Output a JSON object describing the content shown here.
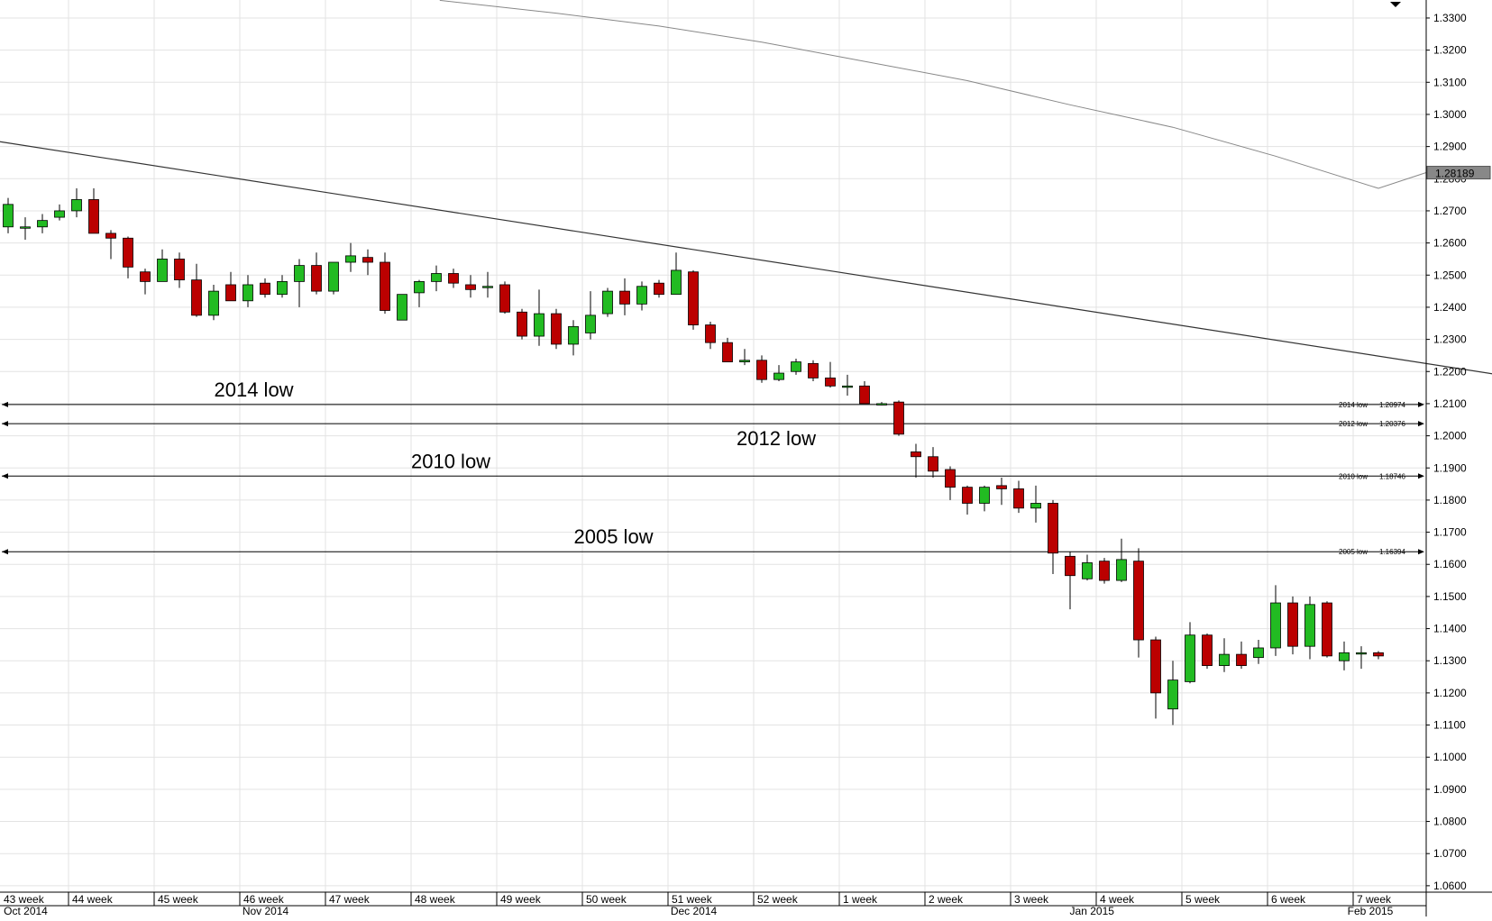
{
  "chart_data": {
    "type": "candlestick",
    "title": "",
    "xlabel": "",
    "ylabel": "",
    "ylim": [
      1.058,
      1.3356
    ],
    "y_ticks": [
      "1.0600",
      "1.0700",
      "1.0800",
      "1.0900",
      "1.1000",
      "1.1100",
      "1.1200",
      "1.1300",
      "1.1400",
      "1.1500",
      "1.1600",
      "1.1700",
      "1.1800",
      "1.1900",
      "1.2000",
      "1.2100",
      "1.2200",
      "1.2300",
      "1.2400",
      "1.2500",
      "1.2600",
      "1.2700",
      "1.2800",
      "1.2900",
      "1.3000",
      "1.3100",
      "1.3200",
      "1.3300"
    ],
    "week_labels": [
      "43 week",
      "44 week",
      "45 week",
      "46 week",
      "47 week",
      "48 week",
      "49 week",
      "50 week",
      "51 week",
      "52 week",
      "1 week",
      "2 week",
      "3 week",
      "4 week",
      "5 week",
      "6 week",
      "7 week"
    ],
    "month_labels": [
      {
        "label": "Oct 2014",
        "at_week": 0.5
      },
      {
        "label": "Nov 2014",
        "at_week": 3.3
      },
      {
        "label": "Dec 2014",
        "at_week": 8.3
      },
      {
        "label": "Jan 2015",
        "at_week": 12.95
      },
      {
        "label": "Feb 2015",
        "at_week": 16.2
      }
    ],
    "candles": [
      {
        "o": 1.265,
        "h": 1.274,
        "l": 1.263,
        "c": 1.272
      },
      {
        "o": 1.265,
        "h": 1.268,
        "l": 1.261,
        "c": 1.265
      },
      {
        "o": 1.265,
        "h": 1.269,
        "l": 1.263,
        "c": 1.267
      },
      {
        "o": 1.268,
        "h": 1.272,
        "l": 1.267,
        "c": 1.27
      },
      {
        "o": 1.27,
        "h": 1.277,
        "l": 1.268,
        "c": 1.2735
      },
      {
        "o": 1.2735,
        "h": 1.277,
        "l": 1.263,
        "c": 1.263
      },
      {
        "o": 1.263,
        "h": 1.264,
        "l": 1.255,
        "c": 1.2615
      },
      {
        "o": 1.2615,
        "h": 1.262,
        "l": 1.249,
        "c": 1.2525
      },
      {
        "o": 1.251,
        "h": 1.252,
        "l": 1.244,
        "c": 1.248
      },
      {
        "o": 1.248,
        "h": 1.258,
        "l": 1.248,
        "c": 1.255
      },
      {
        "o": 1.255,
        "h": 1.257,
        "l": 1.246,
        "c": 1.2485
      },
      {
        "o": 1.2485,
        "h": 1.2535,
        "l": 1.237,
        "c": 1.2375
      },
      {
        "o": 1.2375,
        "h": 1.247,
        "l": 1.236,
        "c": 1.245
      },
      {
        "o": 1.247,
        "h": 1.251,
        "l": 1.242,
        "c": 1.242
      },
      {
        "o": 1.242,
        "h": 1.25,
        "l": 1.24,
        "c": 1.247
      },
      {
        "o": 1.2475,
        "h": 1.249,
        "l": 1.243,
        "c": 1.244
      },
      {
        "o": 1.244,
        "h": 1.25,
        "l": 1.243,
        "c": 1.248
      },
      {
        "o": 1.248,
        "h": 1.255,
        "l": 1.24,
        "c": 1.253
      },
      {
        "o": 1.253,
        "h": 1.257,
        "l": 1.244,
        "c": 1.245
      },
      {
        "o": 1.245,
        "h": 1.254,
        "l": 1.244,
        "c": 1.254
      },
      {
        "o": 1.254,
        "h": 1.26,
        "l": 1.251,
        "c": 1.256
      },
      {
        "o": 1.2555,
        "h": 1.258,
        "l": 1.25,
        "c": 1.254
      },
      {
        "o": 1.254,
        "h": 1.257,
        "l": 1.238,
        "c": 1.239
      },
      {
        "o": 1.236,
        "h": 1.244,
        "l": 1.236,
        "c": 1.244
      },
      {
        "o": 1.2445,
        "h": 1.2485,
        "l": 1.24,
        "c": 1.248
      },
      {
        "o": 1.248,
        "h": 1.253,
        "l": 1.245,
        "c": 1.2505
      },
      {
        "o": 1.2505,
        "h": 1.252,
        "l": 1.246,
        "c": 1.2475
      },
      {
        "o": 1.247,
        "h": 1.25,
        "l": 1.243,
        "c": 1.2455
      },
      {
        "o": 1.2465,
        "h": 1.251,
        "l": 1.243,
        "c": 1.2465
      },
      {
        "o": 1.247,
        "h": 1.248,
        "l": 1.238,
        "c": 1.2385
      },
      {
        "o": 1.2385,
        "h": 1.2395,
        "l": 1.23,
        "c": 1.231
      },
      {
        "o": 1.231,
        "h": 1.2455,
        "l": 1.228,
        "c": 1.238
      },
      {
        "o": 1.238,
        "h": 1.2395,
        "l": 1.227,
        "c": 1.2285
      },
      {
        "o": 1.2285,
        "h": 1.236,
        "l": 1.225,
        "c": 1.234
      },
      {
        "o": 1.232,
        "h": 1.245,
        "l": 1.23,
        "c": 1.2375
      },
      {
        "o": 1.238,
        "h": 1.246,
        "l": 1.237,
        "c": 1.245
      },
      {
        "o": 1.245,
        "h": 1.249,
        "l": 1.2375,
        "c": 1.241
      },
      {
        "o": 1.241,
        "h": 1.248,
        "l": 1.239,
        "c": 1.2465
      },
      {
        "o": 1.2475,
        "h": 1.2485,
        "l": 1.243,
        "c": 1.244
      },
      {
        "o": 1.244,
        "h": 1.257,
        "l": 1.244,
        "c": 1.2515
      },
      {
        "o": 1.251,
        "h": 1.2515,
        "l": 1.233,
        "c": 1.2345
      },
      {
        "o": 1.2345,
        "h": 1.2355,
        "l": 1.227,
        "c": 1.229
      },
      {
        "o": 1.229,
        "h": 1.2305,
        "l": 1.223,
        "c": 1.223
      },
      {
        "o": 1.223,
        "h": 1.227,
        "l": 1.222,
        "c": 1.2235
      },
      {
        "o": 1.2235,
        "h": 1.225,
        "l": 1.2165,
        "c": 1.2175
      },
      {
        "o": 1.2175,
        "h": 1.222,
        "l": 1.217,
        "c": 1.2195
      },
      {
        "o": 1.22,
        "h": 1.224,
        "l": 1.219,
        "c": 1.223
      },
      {
        "o": 1.2225,
        "h": 1.2235,
        "l": 1.217,
        "c": 1.218
      },
      {
        "o": 1.218,
        "h": 1.223,
        "l": 1.215,
        "c": 1.2155
      },
      {
        "o": 1.2155,
        "h": 1.219,
        "l": 1.2125,
        "c": 1.2155
      },
      {
        "o": 1.2155,
        "h": 1.217,
        "l": 1.21,
        "c": 1.21
      },
      {
        "o": 1.21,
        "h": 1.2105,
        "l": 1.2095,
        "c": 1.21
      },
      {
        "o": 1.2105,
        "h": 1.211,
        "l": 1.2,
        "c": 1.2005
      },
      {
        "o": 1.195,
        "h": 1.1975,
        "l": 1.187,
        "c": 1.1935
      },
      {
        "o": 1.1935,
        "h": 1.1965,
        "l": 1.187,
        "c": 1.189
      },
      {
        "o": 1.1895,
        "h": 1.1905,
        "l": 1.18,
        "c": 1.184
      },
      {
        "o": 1.184,
        "h": 1.1845,
        "l": 1.1755,
        "c": 1.179
      },
      {
        "o": 1.179,
        "h": 1.1845,
        "l": 1.1765,
        "c": 1.184
      },
      {
        "o": 1.1845,
        "h": 1.187,
        "l": 1.1785,
        "c": 1.1835
      },
      {
        "o": 1.1835,
        "h": 1.186,
        "l": 1.176,
        "c": 1.1775
      },
      {
        "o": 1.1775,
        "h": 1.1845,
        "l": 1.173,
        "c": 1.179
      },
      {
        "o": 1.179,
        "h": 1.18,
        "l": 1.157,
        "c": 1.1635
      },
      {
        "o": 1.1625,
        "h": 1.164,
        "l": 1.146,
        "c": 1.1565
      },
      {
        "o": 1.1555,
        "h": 1.163,
        "l": 1.155,
        "c": 1.1605
      },
      {
        "o": 1.161,
        "h": 1.162,
        "l": 1.154,
        "c": 1.155
      },
      {
        "o": 1.155,
        "h": 1.168,
        "l": 1.1545,
        "c": 1.1615
      },
      {
        "o": 1.161,
        "h": 1.165,
        "l": 1.131,
        "c": 1.1365
      },
      {
        "o": 1.1365,
        "h": 1.1375,
        "l": 1.112,
        "c": 1.12
      },
      {
        "o": 1.115,
        "h": 1.13,
        "l": 1.11,
        "c": 1.124
      },
      {
        "o": 1.1235,
        "h": 1.142,
        "l": 1.123,
        "c": 1.138
      },
      {
        "o": 1.138,
        "h": 1.1385,
        "l": 1.1275,
        "c": 1.1285
      },
      {
        "o": 1.1285,
        "h": 1.137,
        "l": 1.1265,
        "c": 1.132
      },
      {
        "o": 1.132,
        "h": 1.136,
        "l": 1.1275,
        "c": 1.1285
      },
      {
        "o": 1.131,
        "h": 1.1365,
        "l": 1.129,
        "c": 1.134
      },
      {
        "o": 1.134,
        "h": 1.1535,
        "l": 1.1315,
        "c": 1.148
      },
      {
        "o": 1.148,
        "h": 1.15,
        "l": 1.132,
        "c": 1.1345
      },
      {
        "o": 1.1345,
        "h": 1.15,
        "l": 1.1305,
        "c": 1.1475
      },
      {
        "o": 1.148,
        "h": 1.1485,
        "l": 1.131,
        "c": 1.1315
      },
      {
        "o": 1.13,
        "h": 1.136,
        "l": 1.127,
        "c": 1.1325
      },
      {
        "o": 1.1325,
        "h": 1.1345,
        "l": 1.1275,
        "c": 1.1325
      },
      {
        "o": 1.1325,
        "h": 1.133,
        "l": 1.1305,
        "c": 1.1315
      }
    ],
    "trendline": {
      "from": {
        "x": 0,
        "y": 1.2915
      },
      "to": {
        "x": 87.6,
        "y": 1.2185
      }
    },
    "ma_line": [
      {
        "x": 25.2,
        "y": 1.3355
      },
      {
        "x": 32,
        "y": 1.3315
      },
      {
        "x": 38,
        "y": 1.3275
      },
      {
        "x": 44,
        "y": 1.3225
      },
      {
        "x": 50,
        "y": 1.3165
      },
      {
        "x": 56,
        "y": 1.3105
      },
      {
        "x": 62,
        "y": 1.303
      },
      {
        "x": 68,
        "y": 1.296
      },
      {
        "x": 74,
        "y": 1.287
      },
      {
        "x": 80,
        "y": 1.277
      },
      {
        "x": 85,
        "y": 1.267
      },
      {
        "x": 84.2,
        "y": 1.2818
      }
    ],
    "ma_end": {
      "x": 85.4,
      "y": 1.28189
    },
    "current_value": {
      "label": "1.28189",
      "value": 1.28189
    },
    "support_levels": [
      {
        "value": 1.20974,
        "big_label": "2014 low",
        "small_label": "2014 low",
        "value_label": "1.20974",
        "big_label_above": true,
        "big_label_x": 12.5
      },
      {
        "value": 1.20376,
        "big_label": "2012 low",
        "small_label": "2012 low",
        "value_label": "1.20376",
        "big_label_above": false,
        "big_label_x": 43.0
      },
      {
        "value": 1.18746,
        "big_label": "2010 low",
        "small_label": "2010 low",
        "value_label": "1.18746",
        "big_label_above": true,
        "big_label_x": 24.0
      },
      {
        "value": 1.16394,
        "big_label": "2005 low",
        "small_label": "2005 low",
        "value_label": "1.16394",
        "big_label_above": true,
        "big_label_x": 33.5
      }
    ],
    "colors": {
      "bull": "#22bb22",
      "bear": "#bb0000",
      "grid": "#e3e3e3",
      "axis": "#000000",
      "trend": "#333333",
      "ma": "#888888",
      "value_box": "#888888"
    },
    "grid": true
  }
}
